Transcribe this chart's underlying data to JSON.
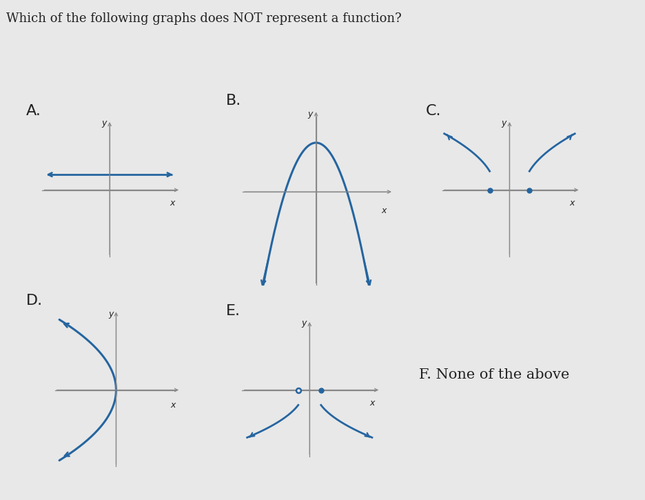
{
  "title": "Which of the following graphs does NOT represent a function?",
  "background_color": "#e8e8e8",
  "curve_color": "#2565a0",
  "axis_color": "#888888",
  "label_color": "#222222",
  "panel_label_fontsize": 16,
  "axis_label_fontsize": 9,
  "title_fontsize": 13,
  "panels_row1": [
    "A",
    "B",
    "C"
  ],
  "panels_row2": [
    "D",
    "E"
  ],
  "f_text": "F. None of the above",
  "f_fontsize": 15
}
